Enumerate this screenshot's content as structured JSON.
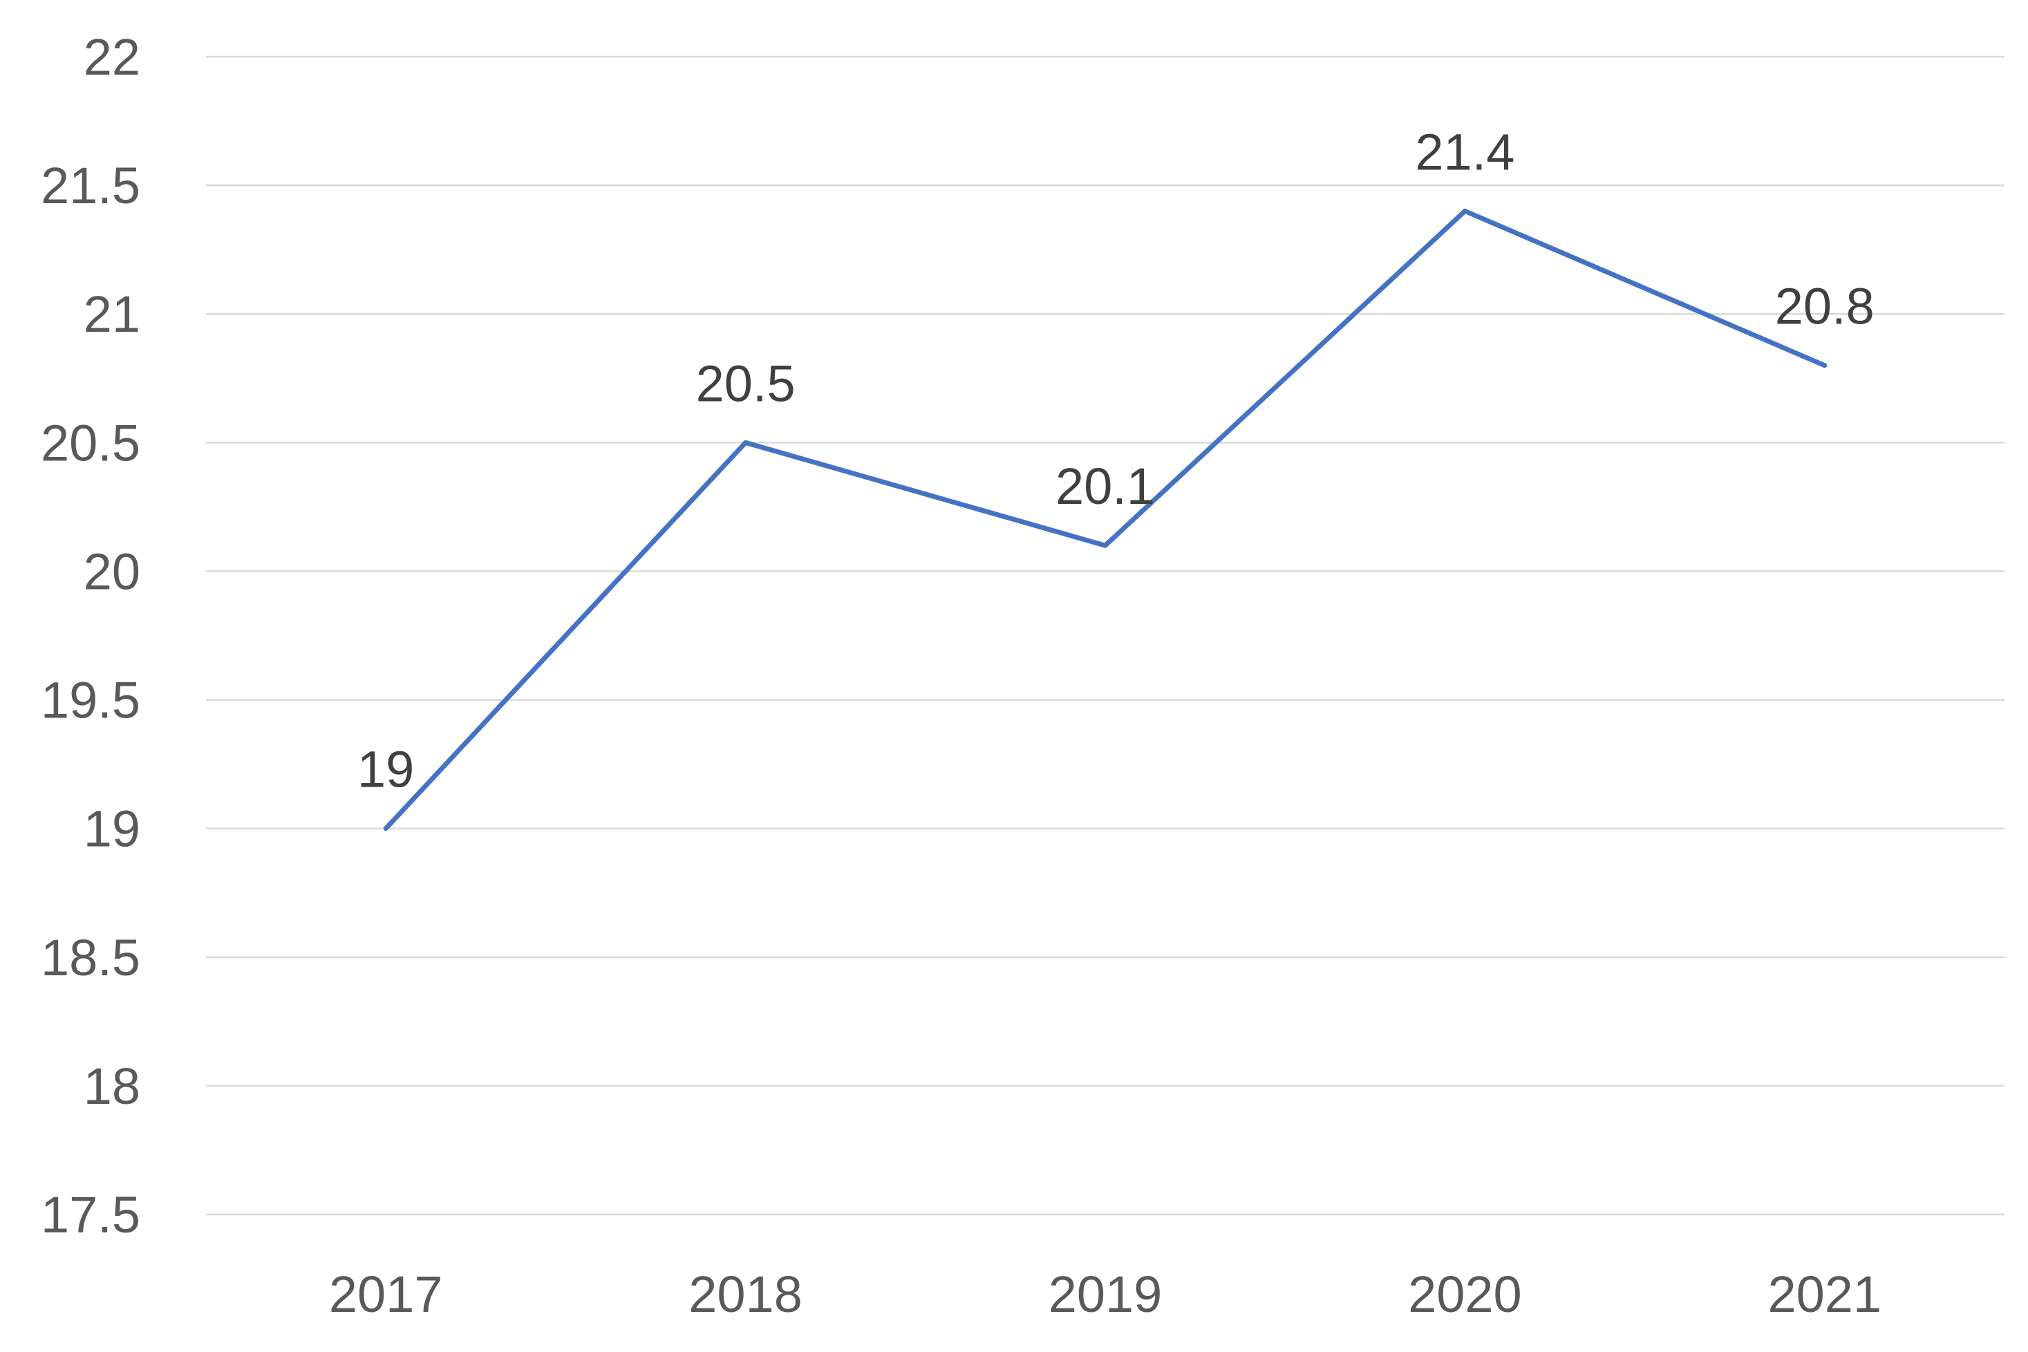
{
  "chart_data": {
    "type": "line",
    "title": "",
    "xlabel": "",
    "ylabel": "",
    "categories": [
      "2017",
      "2018",
      "2019",
      "2020",
      "2021"
    ],
    "series": [
      {
        "values": [
          19,
          20.5,
          20.1,
          21.4,
          20.8
        ],
        "color": "#4472c4"
      }
    ],
    "data_labels": [
      "19",
      "20.5",
      "20.1",
      "21.4",
      "20.8"
    ],
    "ylim": [
      17.5,
      22
    ],
    "y_ticks": [
      "17.5",
      "18",
      "18.5",
      "19",
      "19.5",
      "20",
      "20.5",
      "21",
      "21.5",
      "22"
    ],
    "grid": true,
    "legend": "none",
    "gridline_color": "#d9d9d9",
    "tick_label_color": "#595959"
  }
}
